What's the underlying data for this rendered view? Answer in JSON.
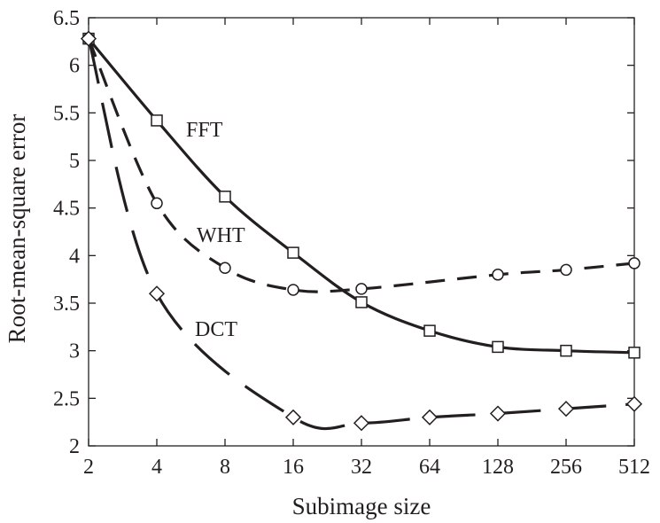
{
  "chart_data": {
    "type": "line",
    "title": "",
    "xlabel": "Subimage size",
    "ylabel": "Root-mean-square error",
    "x_scale": "log2",
    "x": [
      2,
      4,
      8,
      16,
      32,
      64,
      128,
      256,
      512
    ],
    "x_tick_labels": [
      "2",
      "4",
      "8",
      "16",
      "32",
      "64",
      "128",
      "256",
      "512"
    ],
    "ylim": [
      2,
      6.5
    ],
    "y_ticks": [
      2,
      2.5,
      3,
      3.5,
      4,
      4.5,
      5,
      5.5,
      6,
      6.5
    ],
    "y_tick_labels": [
      "2",
      "2.5",
      "3",
      "3.5",
      "4",
      "4.5",
      "5",
      "5.5",
      "6",
      "6.5"
    ],
    "grid": false,
    "series": [
      {
        "name": "FFT",
        "marker": "square",
        "line_style": "solid",
        "values": [
          6.28,
          5.42,
          4.62,
          4.03,
          3.51,
          3.21,
          3.04,
          3.0,
          2.98
        ]
      },
      {
        "name": "WHT",
        "marker": "circle",
        "line_style": "dashed",
        "values": [
          6.28,
          4.55,
          3.87,
          3.64,
          3.65,
          null,
          3.8,
          3.85,
          3.92
        ]
      },
      {
        "name": "DCT",
        "marker": "diamond",
        "line_style": "long-dashed",
        "values": [
          6.28,
          3.6,
          null,
          2.3,
          2.24,
          2.3,
          2.34,
          2.39,
          2.44
        ]
      }
    ]
  }
}
